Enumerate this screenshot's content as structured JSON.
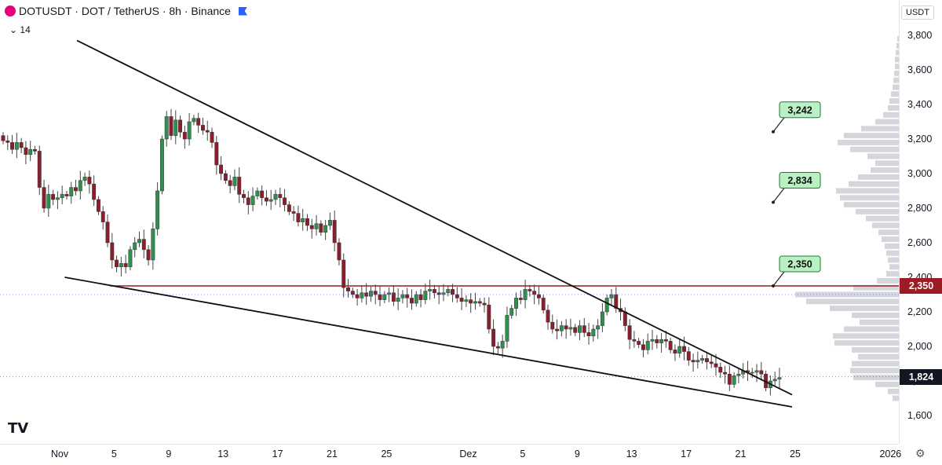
{
  "legend": {
    "symbol": "DOTUSDT · DOT / TetherUS · 8h · Binance",
    "indicator_count": "14"
  },
  "axis_unit": "USDT",
  "logo_text": "TV",
  "colors": {
    "up": "#26a69a",
    "down": "#ef5350",
    "candle_up_fill": "#2f8f4e",
    "candle_down_fill": "#8b1e2d",
    "resistance": "#9c1b24",
    "current_price_bg": "#131722",
    "label_bg": "#b9f0c4",
    "label_border": "#1e7a34"
  },
  "chart_data": {
    "type": "candlestick",
    "ylim": [
      1.5,
      3.9
    ],
    "y_ticks": [
      "3,800",
      "3,600",
      "3,400",
      "3,200",
      "3,000",
      "2,800",
      "2,600",
      "2,400",
      "2,200",
      "2,000",
      "1,800",
      "1,600"
    ],
    "y_tick_values": [
      3.8,
      3.6,
      3.4,
      3.2,
      3.0,
      2.8,
      2.6,
      2.4,
      2.2,
      2.0,
      1.8,
      1.6
    ],
    "x_ticks": [
      "Nov",
      "5",
      "9",
      "13",
      "17",
      "21",
      "25",
      "Dez",
      "5",
      "9",
      "13",
      "17",
      "21",
      "25",
      "2026"
    ],
    "x_tick_days": [
      0,
      4,
      8,
      12,
      16,
      20,
      24,
      30,
      34,
      38,
      42,
      46,
      50,
      54,
      61
    ],
    "time_unit": "days since Nov 1",
    "start_close": 3.22,
    "closes": [
      3.19,
      3.18,
      3.14,
      3.18,
      3.15,
      3.11,
      3.14,
      3.13,
      2.92,
      2.8,
      2.88,
      2.85,
      2.86,
      2.88,
      2.87,
      2.92,
      2.9,
      2.96,
      2.98,
      2.94,
      2.85,
      2.78,
      2.72,
      2.6,
      2.5,
      2.46,
      2.48,
      2.46,
      2.56,
      2.6,
      2.62,
      2.56,
      2.5,
      2.68,
      2.9,
      3.2,
      3.33,
      3.22,
      3.31,
      3.24,
      3.2,
      3.3,
      3.32,
      3.28,
      3.25,
      3.24,
      3.18,
      3.05,
      3.0,
      2.96,
      2.93,
      2.98,
      2.88,
      2.86,
      2.82,
      2.87,
      2.9,
      2.86,
      2.84,
      2.85,
      2.88,
      2.86,
      2.82,
      2.78,
      2.77,
      2.72,
      2.74,
      2.7,
      2.68,
      2.71,
      2.66,
      2.7,
      2.73,
      2.6,
      2.5,
      2.34,
      2.32,
      2.3,
      2.28,
      2.31,
      2.29,
      2.32,
      2.3,
      2.27,
      2.3,
      2.31,
      2.26,
      2.28,
      2.3,
      2.28,
      2.25,
      2.3,
      2.27,
      2.32,
      2.33,
      2.31,
      2.3,
      2.31,
      2.33,
      2.3,
      2.28,
      2.26,
      2.27,
      2.25,
      2.26,
      2.25,
      2.24,
      2.1,
      2.0,
      1.99,
      2.03,
      2.18,
      2.22,
      2.28,
      2.27,
      2.33,
      2.32,
      2.3,
      2.28,
      2.21,
      2.14,
      2.1,
      2.09,
      2.12,
      2.1,
      2.11,
      2.08,
      2.12,
      2.08,
      2.06,
      2.1,
      2.12,
      2.2,
      2.28,
      2.3,
      2.22,
      2.2,
      2.12,
      2.04,
      2.03,
      2.01,
      1.98,
      2.03,
      2.04,
      2.02,
      2.04,
      2.03,
      1.98,
      1.96,
      2.0,
      1.97,
      1.92,
      1.91,
      1.92,
      1.93,
      1.91,
      1.9,
      1.88,
      1.85,
      1.84,
      1.78,
      1.83,
      1.84,
      1.86,
      1.85,
      1.85,
      1.86,
      1.84,
      1.76,
      1.8,
      1.81,
      1.82
    ],
    "horizontal_level": 2.35,
    "current_price": 1.824,
    "current_price_label": "1,824",
    "level_label": "2,350",
    "targets": [
      {
        "label": "3,242",
        "value": 3.242
      },
      {
        "label": "2,834",
        "value": 2.834
      },
      {
        "label": "2,350",
        "value": 2.35
      }
    ],
    "trendlines": [
      {
        "name": "upper",
        "from": {
          "day": 3.0,
          "price": 3.77
        },
        "to": {
          "day": 55.5,
          "price": 1.72
        }
      },
      {
        "name": "lower",
        "from": {
          "day": 2.1,
          "price": 2.4
        },
        "to": {
          "day": 55.5,
          "price": 1.65
        }
      }
    ],
    "volume_profile": [
      [
        3.78,
        2
      ],
      [
        3.74,
        3
      ],
      [
        3.7,
        4
      ],
      [
        3.66,
        5
      ],
      [
        3.62,
        5
      ],
      [
        3.58,
        6
      ],
      [
        3.54,
        7
      ],
      [
        3.5,
        8
      ],
      [
        3.46,
        10
      ],
      [
        3.42,
        12
      ],
      [
        3.38,
        14
      ],
      [
        3.34,
        20
      ],
      [
        3.3,
        30
      ],
      [
        3.26,
        48
      ],
      [
        3.22,
        70
      ],
      [
        3.18,
        78
      ],
      [
        3.14,
        62
      ],
      [
        3.1,
        40
      ],
      [
        3.06,
        30
      ],
      [
        3.02,
        36
      ],
      [
        2.98,
        52
      ],
      [
        2.94,
        64
      ],
      [
        2.9,
        80
      ],
      [
        2.86,
        75
      ],
      [
        2.82,
        70
      ],
      [
        2.78,
        55
      ],
      [
        2.74,
        42
      ],
      [
        2.7,
        34
      ],
      [
        2.66,
        26
      ],
      [
        2.62,
        22
      ],
      [
        2.58,
        18
      ],
      [
        2.54,
        16
      ],
      [
        2.5,
        14
      ],
      [
        2.46,
        12
      ],
      [
        2.42,
        16
      ],
      [
        2.38,
        28
      ],
      [
        2.34,
        58
      ],
      [
        2.3,
        132
      ],
      [
        2.26,
        118
      ],
      [
        2.22,
        88
      ],
      [
        2.18,
        60
      ],
      [
        2.14,
        50
      ],
      [
        2.1,
        70
      ],
      [
        2.06,
        84
      ],
      [
        2.02,
        82
      ],
      [
        1.98,
        60
      ],
      [
        1.94,
        52
      ],
      [
        1.9,
        60
      ],
      [
        1.86,
        62
      ],
      [
        1.82,
        58
      ],
      [
        1.78,
        30
      ],
      [
        1.74,
        14
      ],
      [
        1.7,
        8
      ]
    ]
  }
}
